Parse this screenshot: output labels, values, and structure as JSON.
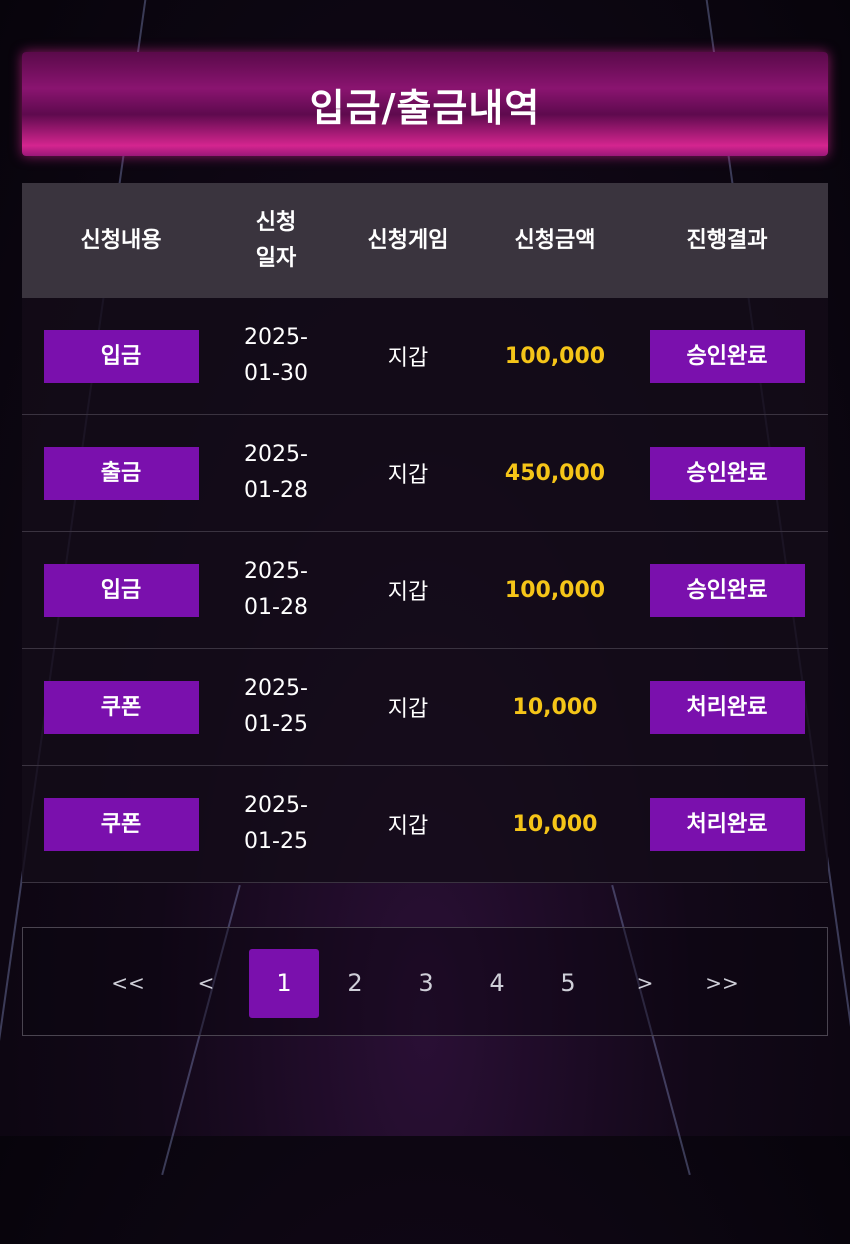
{
  "title": "입금/출금내역",
  "columns": [
    "신청내용",
    "신청\n일자",
    "신청게임",
    "신청금액",
    "진행결과"
  ],
  "columns_split": {
    "date_line1": "신청",
    "date_line2": "일자"
  },
  "rows": [
    {
      "type": "입금",
      "date1": "2025-",
      "date2": "01-30",
      "game": "지갑",
      "amount": "100,000",
      "status": "승인완료"
    },
    {
      "type": "출금",
      "date1": "2025-",
      "date2": "01-28",
      "game": "지갑",
      "amount": "450,000",
      "status": "승인완료"
    },
    {
      "type": "입금",
      "date1": "2025-",
      "date2": "01-28",
      "game": "지갑",
      "amount": "100,000",
      "status": "승인완료"
    },
    {
      "type": "쿠폰",
      "date1": "2025-",
      "date2": "01-25",
      "game": "지갑",
      "amount": "10,000",
      "status": "처리완료"
    },
    {
      "type": "쿠폰",
      "date1": "2025-",
      "date2": "01-25",
      "game": "지갑",
      "amount": "10,000",
      "status": "처리완료"
    }
  ],
  "pagination": {
    "first": "<<",
    "prev": "<",
    "pages": [
      "1",
      "2",
      "3",
      "4",
      "5"
    ],
    "current": "1",
    "next": ">",
    "last": ">>"
  },
  "colors": {
    "accent": "#7a10ad",
    "amount": "#f5c518",
    "banner": "#d4258f"
  }
}
